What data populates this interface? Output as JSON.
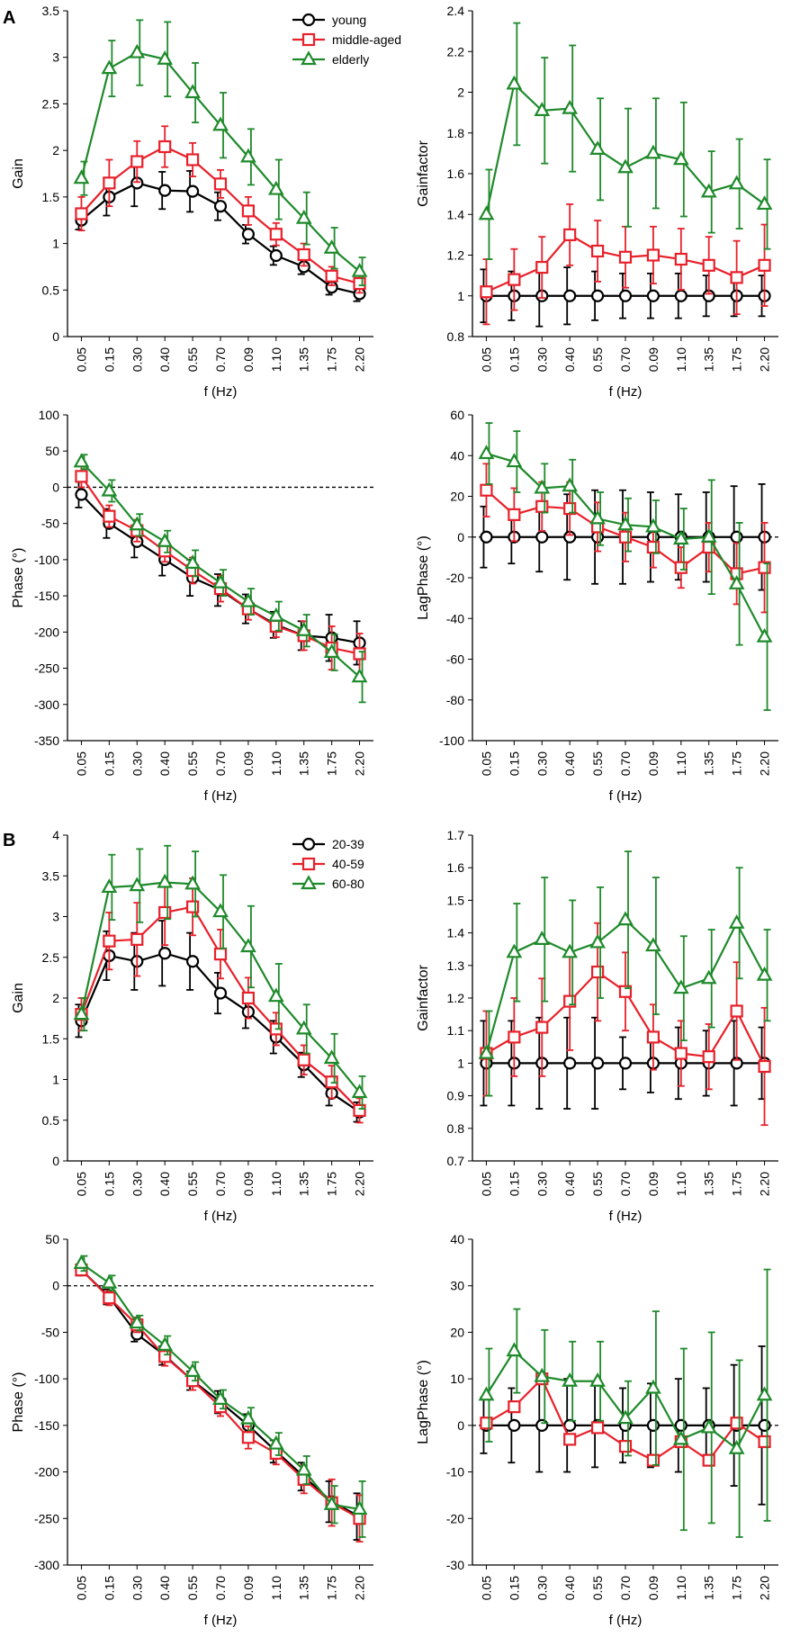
{
  "figure": {
    "panel_labels": [
      "A",
      "B"
    ],
    "colors": {
      "black": "#000000",
      "red": "#e8202a",
      "green": "#1f8a2b"
    }
  },
  "chart_data": [
    {
      "id": "A-gain",
      "type": "line",
      "panel": "A",
      "categories": [
        "0.05",
        "0.15",
        "0.30",
        "0.40",
        "0.55",
        "0.70",
        "0.09",
        "1.10",
        "1.35",
        "1.75",
        "2.20"
      ],
      "xlabel": "f (Hz)",
      "ylabel": "Gain",
      "ylim": [
        0,
        3.5
      ],
      "yticks": [
        0,
        0.5,
        1,
        1.5,
        2,
        2.5,
        3,
        3.5
      ],
      "legend": [
        "young",
        "middle-aged",
        "elderly"
      ],
      "legend_position": "top-right",
      "series": [
        {
          "name": "young",
          "color": "#000000",
          "marker": "circle",
          "values": [
            1.25,
            1.5,
            1.65,
            1.57,
            1.56,
            1.4,
            1.1,
            0.87,
            0.75,
            0.53,
            0.46
          ],
          "errors": [
            0.1,
            0.2,
            0.25,
            0.2,
            0.22,
            0.15,
            0.1,
            0.1,
            0.08,
            0.08,
            0.08
          ]
        },
        {
          "name": "middle-aged",
          "color": "#e8202a",
          "marker": "square",
          "values": [
            1.32,
            1.65,
            1.88,
            2.04,
            1.9,
            1.64,
            1.35,
            1.1,
            0.88,
            0.65,
            0.57
          ],
          "errors": [
            0.18,
            0.25,
            0.22,
            0.22,
            0.18,
            0.15,
            0.15,
            0.12,
            0.12,
            0.1,
            0.1
          ]
        },
        {
          "name": "elderly",
          "color": "#1f8a2b",
          "marker": "triangle",
          "values": [
            1.7,
            2.88,
            3.05,
            2.98,
            2.62,
            2.27,
            1.93,
            1.58,
            1.27,
            0.95,
            0.7
          ],
          "errors": [
            0.18,
            0.3,
            0.35,
            0.4,
            0.32,
            0.35,
            0.3,
            0.32,
            0.28,
            0.22,
            0.15
          ]
        }
      ]
    },
    {
      "id": "A-gainfactor",
      "type": "line",
      "panel": "A",
      "categories": [
        "0.05",
        "0.15",
        "0.30",
        "0.40",
        "0.55",
        "0.70",
        "0.09",
        "1.10",
        "1.35",
        "1.75",
        "2.20"
      ],
      "xlabel": "f (Hz)",
      "ylabel": "Gainfactor",
      "ylim": [
        0.8,
        2.4
      ],
      "yticks": [
        0.8,
        1,
        1.2,
        1.4,
        1.6,
        1.8,
        2,
        2.2,
        2.4
      ],
      "series": [
        {
          "name": "young",
          "color": "#000000",
          "marker": "circle",
          "values": [
            1,
            1,
            1,
            1,
            1,
            1,
            1,
            1,
            1,
            1,
            1
          ],
          "errors": [
            0.13,
            0.12,
            0.15,
            0.14,
            0.12,
            0.11,
            0.11,
            0.11,
            0.1,
            0.1,
            0.1
          ]
        },
        {
          "name": "middle-aged",
          "color": "#e8202a",
          "marker": "square",
          "values": [
            1.02,
            1.08,
            1.14,
            1.3,
            1.22,
            1.19,
            1.2,
            1.18,
            1.15,
            1.09,
            1.15
          ],
          "errors": [
            0.16,
            0.15,
            0.15,
            0.15,
            0.15,
            0.15,
            0.14,
            0.15,
            0.14,
            0.18,
            0.2
          ]
        },
        {
          "name": "elderly",
          "color": "#1f8a2b",
          "marker": "triangle",
          "values": [
            1.4,
            2.04,
            1.91,
            1.92,
            1.72,
            1.63,
            1.7,
            1.67,
            1.51,
            1.55,
            1.45
          ],
          "errors": [
            0.22,
            0.3,
            0.26,
            0.31,
            0.25,
            0.29,
            0.27,
            0.28,
            0.2,
            0.22,
            0.22
          ]
        }
      ]
    },
    {
      "id": "A-phase",
      "type": "line",
      "panel": "A",
      "categories": [
        "0.05",
        "0.15",
        "0.30",
        "0.40",
        "0.55",
        "0.70",
        "0.09",
        "1.10",
        "1.35",
        "1.75",
        "2.20"
      ],
      "xlabel": "f (Hz)",
      "ylabel": "Phase (°)",
      "ylim": [
        -350,
        100
      ],
      "yticks": [
        -350,
        -300,
        -250,
        -200,
        -150,
        -100,
        -50,
        0,
        50,
        100
      ],
      "zero_line": true,
      "series": [
        {
          "name": "young",
          "color": "#000000",
          "marker": "circle",
          "values": [
            -10,
            -50,
            -75,
            -100,
            -125,
            -142,
            -168,
            -190,
            -205,
            -208,
            -215
          ],
          "errors": [
            18,
            20,
            22,
            22,
            25,
            22,
            20,
            18,
            20,
            32,
            30
          ]
        },
        {
          "name": "middle-aged",
          "color": "#e8202a",
          "marker": "square",
          "values": [
            15,
            -40,
            -60,
            -88,
            -115,
            -140,
            -168,
            -192,
            -205,
            -222,
            -230
          ],
          "errors": [
            15,
            15,
            15,
            15,
            18,
            18,
            15,
            15,
            20,
            30,
            28
          ]
        },
        {
          "name": "elderly",
          "color": "#1f8a2b",
          "marker": "triangle",
          "values": [
            35,
            -5,
            -52,
            -75,
            -105,
            -132,
            -158,
            -178,
            -198,
            -228,
            -262
          ],
          "errors": [
            10,
            15,
            15,
            15,
            18,
            18,
            18,
            20,
            22,
            25,
            35
          ]
        }
      ]
    },
    {
      "id": "A-lagphase",
      "type": "line",
      "panel": "A",
      "categories": [
        "0.05",
        "0.15",
        "0.30",
        "0.40",
        "0.55",
        "0.70",
        "0.09",
        "1.10",
        "1.35",
        "1.75",
        "2.20"
      ],
      "xlabel": "f (Hz)",
      "ylabel": "LagPhase (°)",
      "ylim": [
        -100,
        60
      ],
      "yticks": [
        -100,
        -80,
        -60,
        -40,
        -20,
        0,
        20,
        40,
        60
      ],
      "zero_line": true,
      "series": [
        {
          "name": "young",
          "color": "#000000",
          "marker": "circle",
          "values": [
            0,
            0,
            0,
            0,
            0,
            0,
            0,
            0,
            0,
            0,
            0
          ],
          "errors": [
            15,
            13,
            17,
            21,
            23,
            23,
            22,
            21,
            22,
            25,
            26
          ]
        },
        {
          "name": "middle-aged",
          "color": "#e8202a",
          "marker": "square",
          "values": [
            23,
            11,
            15,
            14,
            5,
            0,
            -5,
            -15,
            -5,
            -18,
            -15
          ],
          "errors": [
            13,
            13,
            12,
            13,
            12,
            12,
            10,
            10,
            12,
            15,
            22
          ]
        },
        {
          "name": "elderly",
          "color": "#1f8a2b",
          "marker": "triangle",
          "values": [
            41,
            37,
            24,
            25,
            9,
            6,
            5,
            -1,
            0,
            -23,
            -49
          ],
          "errors": [
            15,
            15,
            12,
            13,
            13,
            13,
            13,
            15,
            28,
            30,
            36
          ]
        }
      ]
    },
    {
      "id": "B-gain",
      "type": "line",
      "panel": "B",
      "categories": [
        "0.05",
        "0.15",
        "0.30",
        "0.40",
        "0.55",
        "0.70",
        "0.09",
        "1.10",
        "1.35",
        "1.75",
        "2.20"
      ],
      "xlabel": "f (Hz)",
      "ylabel": "Gain",
      "ylim": [
        0,
        4
      ],
      "yticks": [
        0,
        0.5,
        1,
        1.5,
        2,
        2.5,
        3,
        3.5,
        4
      ],
      "legend": [
        "20-39",
        "40-59",
        "60-80"
      ],
      "legend_position": "top-right",
      "series": [
        {
          "name": "20-39",
          "color": "#000000",
          "marker": "circle",
          "values": [
            1.72,
            2.52,
            2.45,
            2.55,
            2.45,
            2.06,
            1.83,
            1.52,
            1.18,
            0.83,
            0.6
          ],
          "errors": [
            0.2,
            0.3,
            0.35,
            0.4,
            0.35,
            0.25,
            0.2,
            0.2,
            0.15,
            0.15,
            0.12
          ]
        },
        {
          "name": "40-59",
          "color": "#e8202a",
          "marker": "square",
          "values": [
            1.8,
            2.7,
            2.72,
            3.05,
            3.12,
            2.54,
            2.0,
            1.62,
            1.24,
            0.97,
            0.62
          ],
          "errors": [
            0.2,
            0.35,
            0.45,
            0.4,
            0.35,
            0.3,
            0.25,
            0.2,
            0.18,
            0.2,
            0.15
          ]
        },
        {
          "name": "60-80",
          "color": "#1f8a2b",
          "marker": "triangle",
          "values": [
            1.8,
            3.36,
            3.38,
            3.42,
            3.4,
            3.06,
            2.63,
            2.02,
            1.62,
            1.26,
            0.84
          ],
          "errors": [
            0.2,
            0.4,
            0.45,
            0.45,
            0.4,
            0.45,
            0.5,
            0.4,
            0.3,
            0.3,
            0.2
          ]
        }
      ]
    },
    {
      "id": "B-gainfactor",
      "type": "line",
      "panel": "B",
      "categories": [
        "0.05",
        "0.15",
        "0.30",
        "0.40",
        "0.55",
        "0.70",
        "0.09",
        "1.10",
        "1.35",
        "1.75",
        "2.20"
      ],
      "xlabel": "f (Hz)",
      "ylabel": "Gainfactor",
      "ylim": [
        0.7,
        1.7
      ],
      "yticks": [
        0.7,
        0.8,
        0.9,
        1,
        1.1,
        1.2,
        1.3,
        1.4,
        1.5,
        1.6,
        1.7
      ],
      "series": [
        {
          "name": "20-39",
          "color": "#000000",
          "marker": "circle",
          "values": [
            1,
            1,
            1,
            1,
            1,
            1,
            1,
            1,
            1,
            1,
            1
          ],
          "errors": [
            0.13,
            0.13,
            0.14,
            0.14,
            0.14,
            0.08,
            0.09,
            0.11,
            0.1,
            0.13,
            0.11
          ]
        },
        {
          "name": "40-59",
          "color": "#e8202a",
          "marker": "square",
          "values": [
            1.03,
            1.08,
            1.11,
            1.19,
            1.28,
            1.22,
            1.08,
            1.03,
            1.02,
            1.16,
            0.99
          ],
          "errors": [
            0.13,
            0.12,
            0.15,
            0.15,
            0.15,
            0.12,
            0.1,
            0.1,
            0.1,
            0.15,
            0.18
          ]
        },
        {
          "name": "60-80",
          "color": "#1f8a2b",
          "marker": "triangle",
          "values": [
            1.03,
            1.34,
            1.38,
            1.34,
            1.37,
            1.44,
            1.36,
            1.23,
            1.26,
            1.43,
            1.27
          ],
          "errors": [
            0.13,
            0.15,
            0.19,
            0.16,
            0.17,
            0.21,
            0.21,
            0.16,
            0.15,
            0.17,
            0.14
          ]
        }
      ]
    },
    {
      "id": "B-phase",
      "type": "line",
      "panel": "B",
      "categories": [
        "0.05",
        "0.15",
        "0.30",
        "0.40",
        "0.55",
        "0.70",
        "0.09",
        "1.10",
        "1.35",
        "1.75",
        "2.20"
      ],
      "xlabel": "f (Hz)",
      "ylabel": "Phase (°)",
      "ylim": [
        -300,
        50
      ],
      "yticks": [
        -300,
        -250,
        -200,
        -150,
        -100,
        -50,
        0,
        50
      ],
      "zero_line": true,
      "series": [
        {
          "name": "20-39",
          "color": "#000000",
          "marker": "circle",
          "values": [
            17,
            -12,
            -52,
            -75,
            -102,
            -125,
            -150,
            -178,
            -205,
            -232,
            -248
          ],
          "errors": [
            6,
            8,
            8,
            10,
            10,
            12,
            12,
            12,
            15,
            22,
            25
          ]
        },
        {
          "name": "40-59",
          "color": "#e8202a",
          "marker": "square",
          "values": [
            17,
            -13,
            -42,
            -76,
            -102,
            -130,
            -163,
            -180,
            -208,
            -233,
            -250
          ],
          "errors": [
            5,
            8,
            8,
            10,
            10,
            10,
            12,
            12,
            15,
            25,
            25
          ]
        },
        {
          "name": "60-80",
          "color": "#1f8a2b",
          "marker": "triangle",
          "values": [
            24,
            3,
            -40,
            -64,
            -92,
            -122,
            -143,
            -170,
            -198,
            -235,
            -240
          ],
          "errors": [
            8,
            8,
            8,
            10,
            10,
            10,
            12,
            12,
            15,
            20,
            30
          ]
        }
      ]
    },
    {
      "id": "B-lagphase",
      "type": "line",
      "panel": "B",
      "categories": [
        "0.05",
        "0.15",
        "0.30",
        "0.40",
        "0.55",
        "0.70",
        "0.09",
        "1.10",
        "1.35",
        "1.75",
        "2.20"
      ],
      "xlabel": "f (Hz)",
      "ylabel": "LagPhase (°)",
      "ylim": [
        -30,
        40
      ],
      "yticks": [
        -30,
        -20,
        -10,
        0,
        10,
        20,
        30,
        40
      ],
      "zero_line": true,
      "series": [
        {
          "name": "20-39",
          "color": "#000000",
          "marker": "circle",
          "values": [
            0,
            0,
            0,
            0,
            0,
            0,
            0,
            0,
            0,
            0,
            0
          ],
          "errors": [
            6,
            8,
            10,
            10,
            9,
            8,
            9,
            10,
            8,
            13,
            17
          ]
        },
        {
          "name": "40-59",
          "color": "#e8202a",
          "marker": "square",
          "values": [
            0.5,
            4,
            10,
            -3,
            -0.5,
            -4.5,
            -7.5,
            -3.5,
            -7.5,
            0.5,
            -3.5
          ]
        },
        {
          "name": "60-80",
          "color": "#1f8a2b",
          "marker": "triangle",
          "values": [
            6.5,
            16,
            10.5,
            9.5,
            9.5,
            1.5,
            8,
            -3,
            -0.5,
            -5,
            6.5
          ],
          "errors": [
            10,
            9,
            10,
            8.5,
            8.5,
            8,
            16.5,
            19.5,
            20.5,
            19,
            27
          ]
        }
      ]
    }
  ]
}
